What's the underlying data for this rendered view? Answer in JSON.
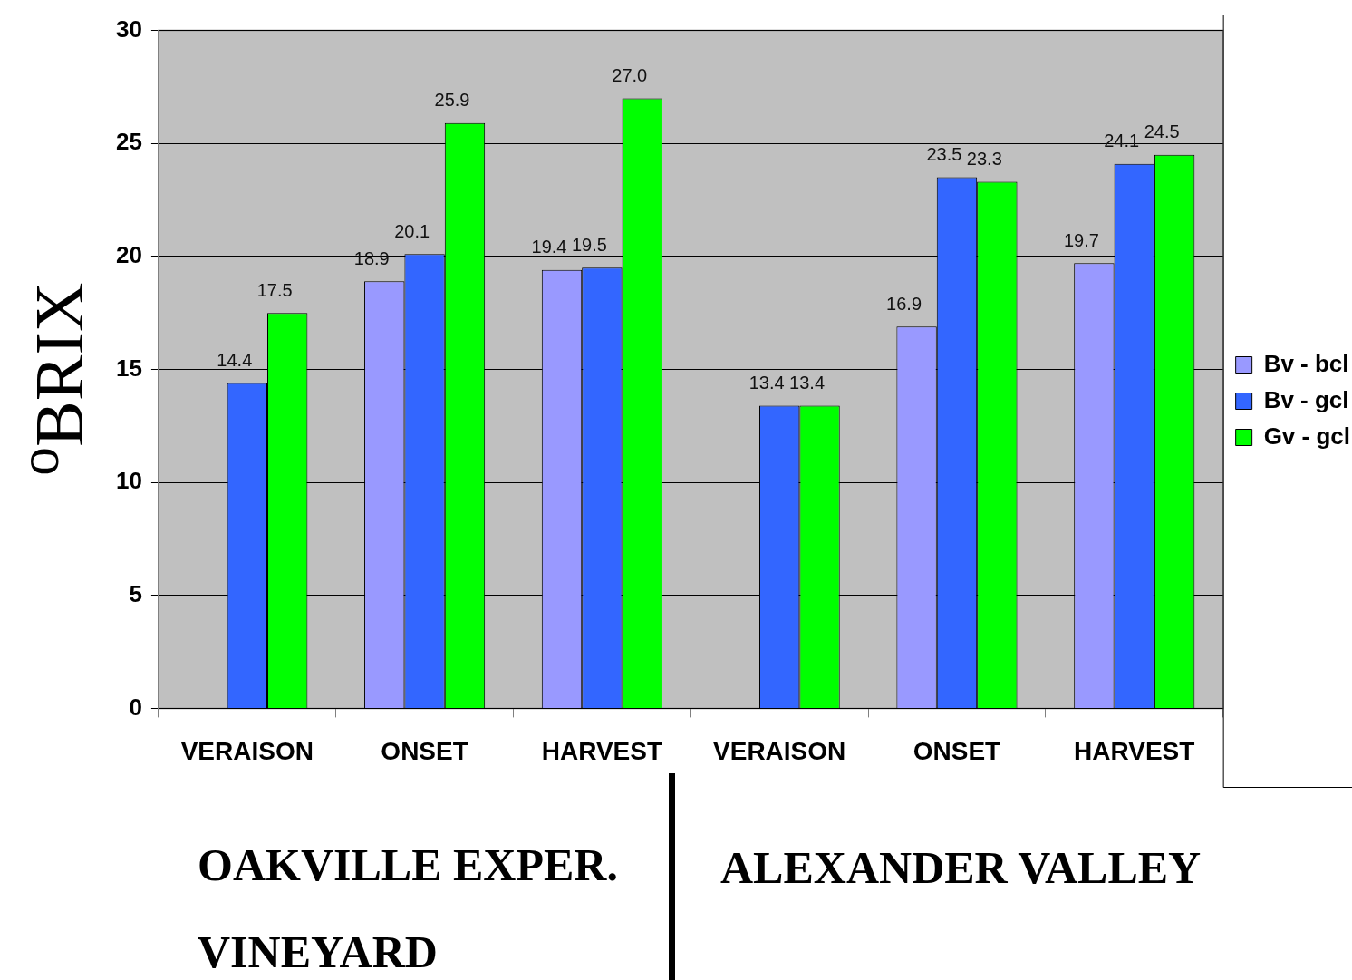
{
  "chart_data": {
    "type": "bar",
    "ylabel": "$^{o}$BRIX",
    "categories": [
      "VERAISON",
      "ONSET",
      "HARVEST",
      "VERAISON",
      "ONSET",
      "HARVEST"
    ],
    "series": [
      {
        "name": "Bv - bcl",
        "color": "#9999ff",
        "values": [
          null,
          18.9,
          19.4,
          null,
          16.9,
          19.7
        ],
        "value_labels": [
          null,
          "18.9",
          "19.4",
          null,
          "16.9",
          "19.7"
        ]
      },
      {
        "name": "Bv - gcl",
        "color": "#3366ff",
        "values": [
          14.4,
          20.1,
          19.5,
          13.4,
          23.5,
          24.1
        ],
        "value_labels": [
          "14.4",
          "20.1",
          "19.5",
          "13.4",
          "23.5",
          "24.1"
        ]
      },
      {
        "name": "Gv - gcl",
        "color": "#00ff00",
        "values": [
          17.5,
          25.9,
          27.0,
          13.4,
          23.3,
          24.5
        ],
        "value_labels": [
          "17.5",
          "25.9",
          "27.0",
          "13.4",
          "23.3",
          "24.5"
        ]
      }
    ],
    "ylim": [
      0,
      30
    ],
    "yticks": [
      0,
      5,
      10,
      15,
      20,
      25,
      30
    ],
    "grid": "y",
    "legend": "right",
    "annotations": [
      "OAKVILLE EXPER. VINEYARD",
      "ALEXANDER VALLEY"
    ]
  }
}
